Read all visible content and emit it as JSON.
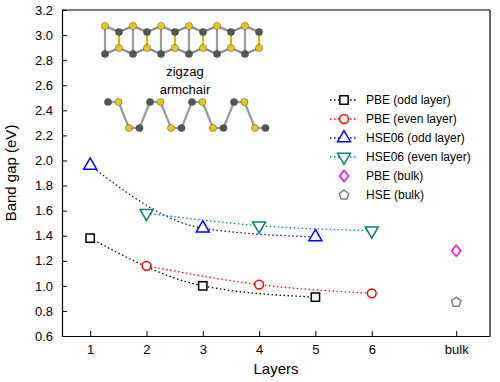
{
  "chart_data": {
    "type": "line",
    "x_label": "Layers",
    "y_label": "Band gap (eV)",
    "annotations": [
      "zigzag",
      "armchair"
    ],
    "xlim": [
      0.5,
      8.1
    ],
    "xticks": [
      1,
      2,
      3,
      4,
      5,
      6,
      {
        "value": 7.5,
        "label": "bulk"
      }
    ],
    "ylim": [
      0.6,
      3.2
    ],
    "yticks": [
      0.6,
      0.8,
      {
        "value": 1,
        "label": "1.0"
      },
      1.2,
      1.4,
      1.6,
      1.8,
      {
        "value": 2,
        "label": "2.0"
      },
      2.2,
      2.4,
      2.6,
      2.8,
      {
        "value": 3,
        "label": "3.0"
      },
      3.2
    ],
    "legend": "right",
    "series": [
      {
        "name": "PBE (odd layer)",
        "color": "#000000",
        "marker": "square",
        "line_style": "dotted",
        "x": [
          1,
          3,
          5
        ],
        "values": [
          1.38,
          1.0,
          0.91
        ]
      },
      {
        "name": "PBE (even layer)",
        "color": "#ff0000",
        "marker": "circle",
        "line_style": "dotted",
        "x": [
          2,
          4,
          6
        ],
        "values": [
          1.16,
          1.01,
          0.94
        ]
      },
      {
        "name": "HSE06 (odd layer)",
        "color": "#0000ff",
        "marker": "triangle-up",
        "line_style": "dotted",
        "x": [
          1,
          3,
          5
        ],
        "values": [
          1.96,
          1.46,
          1.39
        ]
      },
      {
        "name": "HSE06 (even layer)",
        "color": "#008080",
        "marker": "triangle-down",
        "line_style": "dotted",
        "x": [
          2,
          4,
          6
        ],
        "values": [
          1.58,
          1.48,
          1.44
        ]
      },
      {
        "name": "PBE (bulk)",
        "color": "#ff00ff",
        "marker": "diamond",
        "line_style": "none",
        "x": [
          7.5
        ],
        "values": [
          1.28
        ]
      },
      {
        "name": "HSE (bulk)",
        "color": "#808080",
        "marker": "pentagon",
        "line_style": "none",
        "x": [
          7.5
        ],
        "values": [
          0.87
        ]
      }
    ]
  }
}
